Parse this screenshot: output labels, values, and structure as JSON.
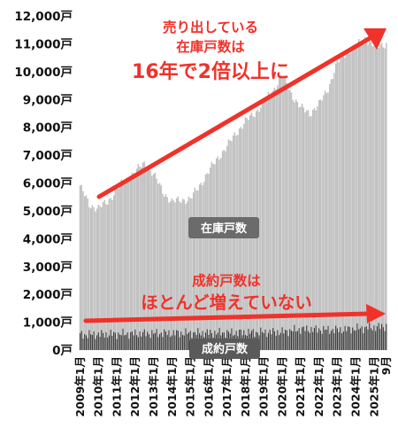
{
  "chart_data": {
    "type": "bar",
    "title": "",
    "xlabel": "",
    "ylabel": "",
    "ylim": [
      0,
      12000
    ],
    "y_ticks": [
      {
        "value": 0,
        "label": "0戸"
      },
      {
        "value": 1000,
        "label": "1,000戸"
      },
      {
        "value": 2000,
        "label": "2,000戸"
      },
      {
        "value": 3000,
        "label": "3,000戸"
      },
      {
        "value": 4000,
        "label": "4,000戸"
      },
      {
        "value": 5000,
        "label": "5,000戸"
      },
      {
        "value": 6000,
        "label": "6,000戸"
      },
      {
        "value": 7000,
        "label": "7,000戸"
      },
      {
        "value": 8000,
        "label": "8,000戸"
      },
      {
        "value": 9000,
        "label": "9,000戸"
      },
      {
        "value": 10000,
        "label": "10,000戸"
      },
      {
        "value": 11000,
        "label": "11,000戸"
      },
      {
        "value": 12000,
        "label": "12,000戸"
      }
    ],
    "x_ticks": [
      "2009年1月",
      "2010年1月",
      "2011年1月",
      "2012年1月",
      "2013年1月",
      "2014年1月",
      "2015年1月",
      "2016年1月",
      "2017年1月",
      "2018年1月",
      "2019年1月",
      "2020年1月",
      "2021年1月",
      "2022年1月",
      "2023年1月",
      "2024年1月",
      "2025年1月",
      "9月"
    ],
    "x_start": "2009-01",
    "x_end": "2025-09",
    "series": [
      {
        "name": "在庫戸数",
        "color": "#c8c8c8",
        "monthly_anchors": [
          [
            "2009-01",
            5900
          ],
          [
            "2009-07",
            5200
          ],
          [
            "2010-01",
            5100
          ],
          [
            "2010-07",
            5300
          ],
          [
            "2011-01",
            5800
          ],
          [
            "2011-07",
            6100
          ],
          [
            "2012-01",
            6400
          ],
          [
            "2012-07",
            6700
          ],
          [
            "2013-01",
            6300
          ],
          [
            "2013-07",
            5700
          ],
          [
            "2014-01",
            5300
          ],
          [
            "2014-07",
            5400
          ],
          [
            "2015-01",
            5400
          ],
          [
            "2015-07",
            5900
          ],
          [
            "2016-01",
            6400
          ],
          [
            "2016-07",
            6900
          ],
          [
            "2017-01",
            7300
          ],
          [
            "2017-07",
            7800
          ],
          [
            "2018-01",
            8200
          ],
          [
            "2018-07",
            8500
          ],
          [
            "2019-01",
            8900
          ],
          [
            "2019-07",
            9300
          ],
          [
            "2020-01",
            9900
          ],
          [
            "2020-07",
            9200
          ],
          [
            "2021-01",
            8700
          ],
          [
            "2021-07",
            8500
          ],
          [
            "2022-01",
            8800
          ],
          [
            "2022-07",
            9400
          ],
          [
            "2023-01",
            10300
          ],
          [
            "2023-07",
            10700
          ],
          [
            "2024-01",
            10900
          ],
          [
            "2024-07",
            11200
          ],
          [
            "2025-01",
            10900
          ],
          [
            "2025-09",
            11000
          ]
        ]
      },
      {
        "name": "成約戸数",
        "color": "#333333",
        "monthly_anchors": [
          [
            "2009-01",
            550
          ],
          [
            "2013-01",
            600
          ],
          [
            "2017-01",
            620
          ],
          [
            "2020-01",
            650
          ],
          [
            "2021-01",
            750
          ],
          [
            "2023-01",
            720
          ],
          [
            "2025-09",
            850
          ]
        ]
      }
    ],
    "annotations": {
      "stock_text_line1": "売り出している",
      "stock_text_line2": "在庫戸数は",
      "stock_text_line3": "16年で2倍以上に",
      "contracts_text_line1": "成約戸数は",
      "contracts_text_line2": "ほとんど増えていない",
      "stock_label": "在庫戸数",
      "contracts_label": "成約戸数"
    },
    "colors": {
      "arrow": "#f0322a",
      "label_box": "#6b6b6b"
    }
  }
}
